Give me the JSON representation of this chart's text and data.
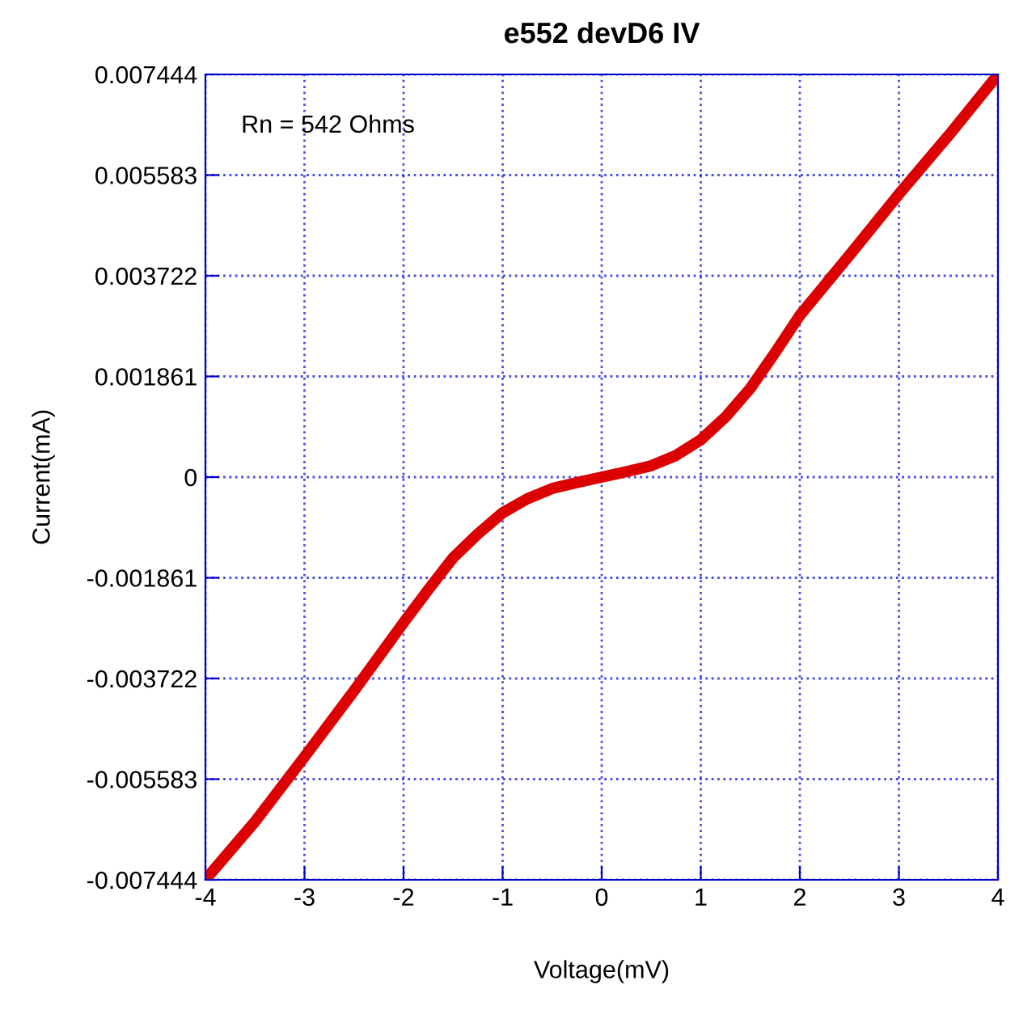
{
  "chart_data": {
    "type": "line",
    "title": "e552 devD6 IV",
    "xlabel": "Voltage(mV)",
    "ylabel": "Current(mA)",
    "annotations": [
      "Rn = 542 Ohms"
    ],
    "series": [
      {
        "color": "#dd0000",
        "x": [
          -4,
          -3.5,
          -3,
          -2.5,
          -2,
          -1.75,
          -1.5,
          -1.25,
          -1,
          -0.75,
          -0.5,
          -0.25,
          0,
          0.25,
          0.5,
          0.75,
          1,
          1.25,
          1.5,
          1.75,
          2,
          2.5,
          3,
          3.5,
          4
        ],
        "values": [
          -0.00744,
          -0.00637,
          -0.00517,
          -0.00395,
          -0.00269,
          -0.00208,
          -0.00149,
          -0.00105,
          -0.00066,
          -0.0004,
          -0.00021,
          -0.0001,
          0,
          0.0001,
          0.00021,
          0.0004,
          0.00069,
          0.00111,
          0.00164,
          0.0023,
          0.00299,
          0.0041,
          0.00523,
          0.00631,
          0.00744
        ]
      }
    ],
    "xlim": [
      -4,
      4
    ],
    "xticks": [
      -4,
      -3,
      -2,
      -1,
      0,
      1,
      2,
      3,
      4
    ],
    "ylim": [
      -0.007444,
      0.007444
    ],
    "yticks": [
      -0.007444,
      -0.005583,
      -0.003722,
      -0.001861,
      0,
      0.001861,
      0.003722,
      0.005583,
      0.007444
    ],
    "grid": true,
    "line_style": "solid",
    "marker": "none"
  }
}
